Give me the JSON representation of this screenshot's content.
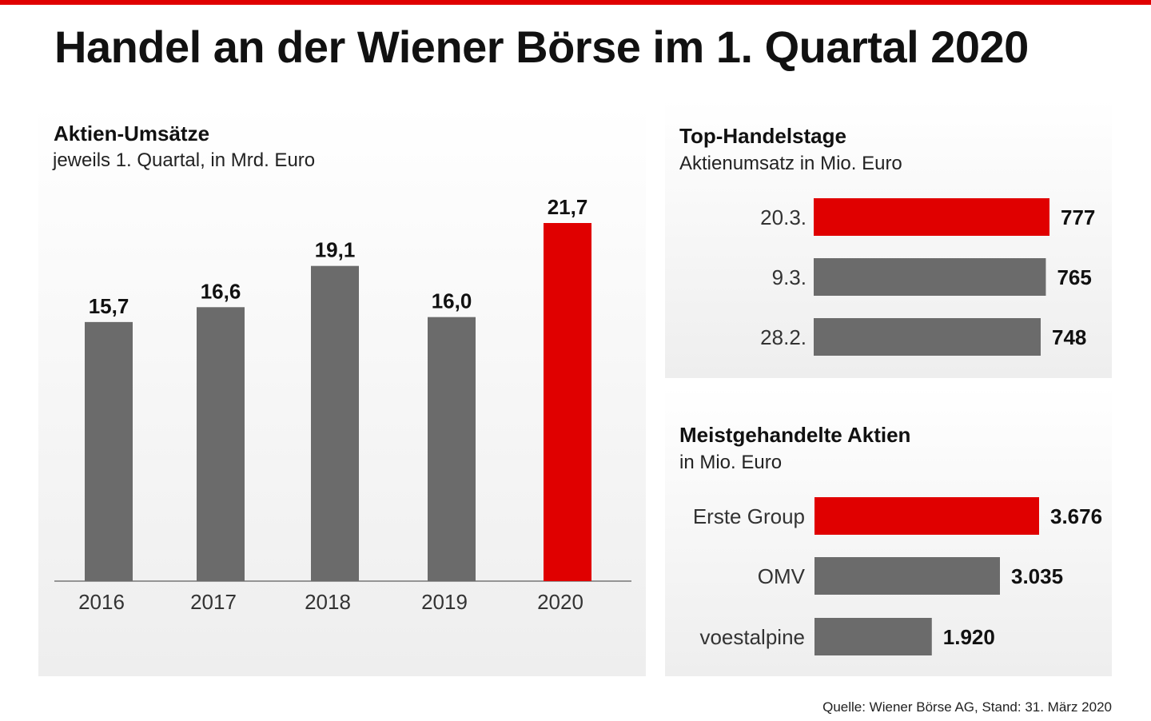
{
  "title": "Handel an der Wiener Börse im 1. Quartal 2020",
  "source": "Quelle: Wiener Börse AG, Stand: 31. März 2020",
  "colors": {
    "highlight": "#e00000",
    "bar": "#6b6b6b"
  },
  "chart_data": [
    {
      "type": "bar",
      "title": "Aktien-Umsätze",
      "subtitle": "jeweils 1. Quartal, in Mrd. Euro",
      "categories": [
        "2016",
        "2017",
        "2018",
        "2019",
        "2020"
      ],
      "values": [
        15.7,
        16.6,
        19.1,
        16.0,
        21.7
      ],
      "labels": [
        "15,7",
        "16,6",
        "19,1",
        "16,0",
        "21,7"
      ],
      "highlight": [
        "2020"
      ],
      "ylim": [
        0,
        21.7
      ],
      "grid": false
    },
    {
      "type": "bar",
      "orientation": "horizontal",
      "title": "Top-Handelstage",
      "subtitle": "Aktienumsatz in Mio. Euro",
      "categories": [
        "20.3.",
        "9.3.",
        "28.2."
      ],
      "values": [
        777,
        765,
        748
      ],
      "labels": [
        "777",
        "765",
        "748"
      ],
      "highlight": [
        "20.3."
      ],
      "xlim": [
        0,
        777
      ]
    },
    {
      "type": "bar",
      "orientation": "horizontal",
      "title": "Meistgehandelte Aktien",
      "subtitle": "in Mio. Euro",
      "categories": [
        "Erste Group",
        "OMV",
        "voestalpine"
      ],
      "values": [
        3676,
        3035,
        1920
      ],
      "labels": [
        "3.676",
        "3.035",
        "1.920"
      ],
      "highlight": [
        "Erste Group"
      ],
      "xlim": [
        0,
        3676
      ]
    }
  ]
}
